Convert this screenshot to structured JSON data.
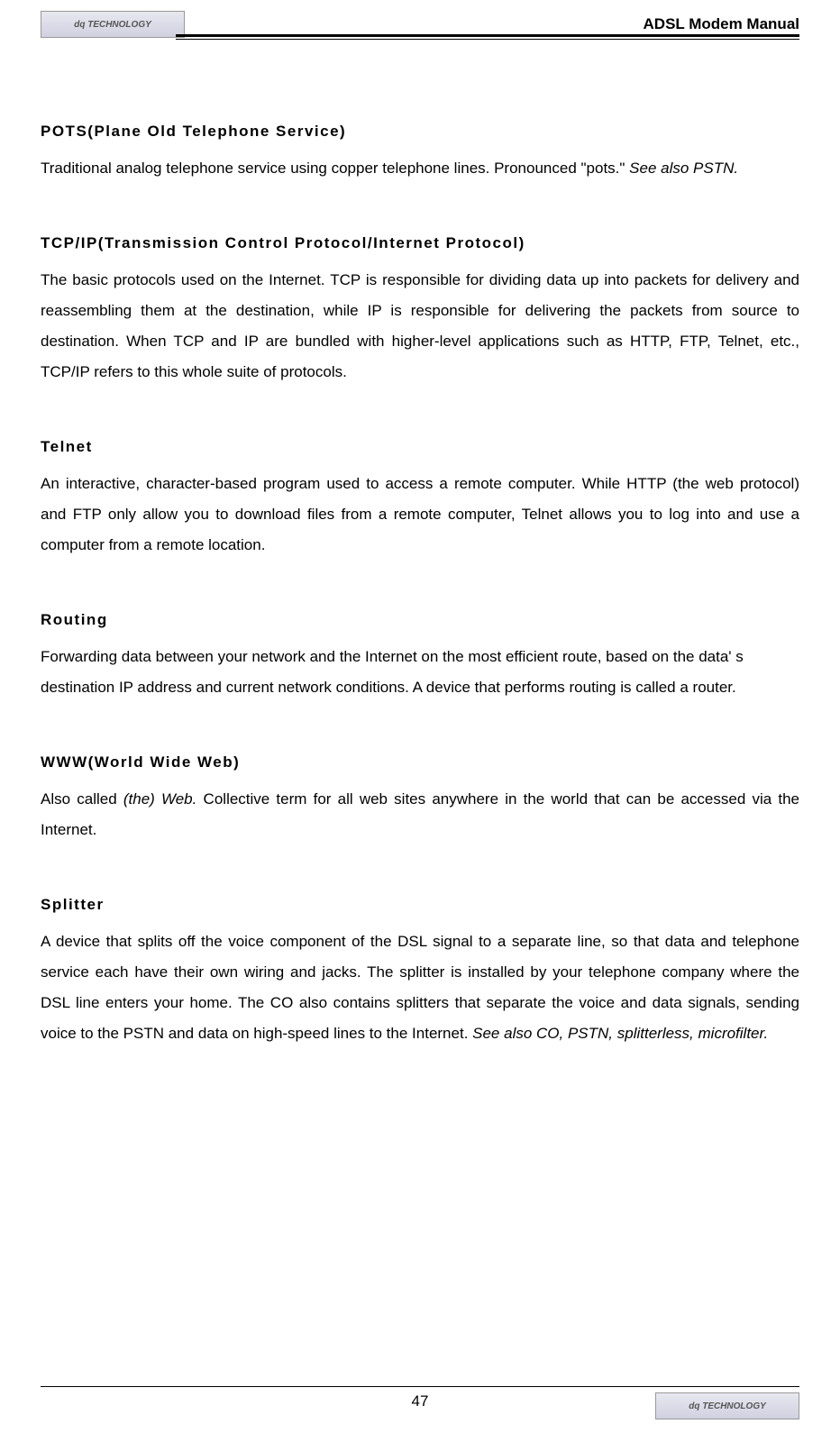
{
  "header": {
    "title": "ADSL Modem Manual",
    "logo_text": "dq TECHNOLOGY"
  },
  "terms": [
    {
      "heading": "POTS(Plane Old Telephone Service)",
      "body_pre": "Traditional analog telephone service using copper telephone lines. Pronounced \"pots.\" ",
      "body_italic": " See also PSTN.",
      "justify": false
    },
    {
      "heading": "TCP/IP(Transmission Control Protocol/Internet Protocol)",
      "body_pre": "The basic protocols used on the Internet. TCP is responsible for dividing data up into packets for delivery and reassembling them at the destination, while IP is responsible for delivering the packets from source to destination. When TCP and IP are bundled with higher-level applications such as HTTP, FTP, Telnet, etc., TCP/IP refers to this whole suite of protocols.",
      "body_italic": "",
      "justify": true
    },
    {
      "heading": "Telnet",
      "body_pre": "An interactive, character-based program used to access a remote computer. While HTTP (the web protocol) and FTP only allow you to download files from a remote computer, Telnet allows you to log into and use a computer from a remote location.",
      "body_italic": "",
      "justify": true
    },
    {
      "heading": "Routing",
      "body_pre": "Forwarding data between your network and the Internet on the most efficient route, based on the data' s destination IP address and current network conditions. A device that performs routing is called a router.",
      "body_italic": "",
      "justify": false
    },
    {
      "heading": "WWW(World Wide Web)",
      "body_pre": "Also called ",
      "body_italic": "(the) Web.",
      "body_post": " Collective term for all web sites anywhere in the world that can be accessed via the Internet.",
      "justify": true
    },
    {
      "heading": "Splitter",
      "body_pre": "A device that splits off the voice component of the DSL signal to a separate line, so that data and telephone service each have their own wiring and jacks. The splitter is installed by your telephone company where the DSL line enters your home. The CO also contains splitters that separate the voice and data signals, sending voice to the PSTN and data on high-speed lines to the Internet. ",
      "body_italic": "See also CO, PSTN, splitterless, microfilter.",
      "justify": true
    }
  ],
  "footer": {
    "page_number": "47",
    "logo_text": "dq TECHNOLOGY"
  }
}
